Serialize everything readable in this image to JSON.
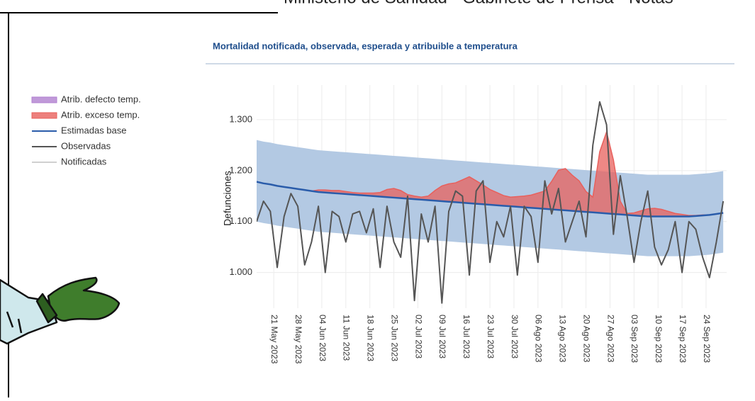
{
  "header": "Ministerio de Sanidad - Gabinete de Prensa - Notas",
  "chart_data": {
    "type": "line",
    "title": "Mortalidad notificada, observada, esperada y atribuible a temperatura",
    "y_label": "Defunciones",
    "xlim": [
      "2023-05-16",
      "2023-09-30"
    ],
    "ylim": [
      930,
      1368
    ],
    "grid": true,
    "legend": "left",
    "yticks": [
      {
        "value": 1000,
        "label": "1.000"
      },
      {
        "value": 1100,
        "label": "1.100"
      },
      {
        "value": 1200,
        "label": "1.200"
      },
      {
        "value": 1300,
        "label": "1.300"
      }
    ],
    "xticks": [
      {
        "value": "2023-05-21",
        "label": "21 May 2023"
      },
      {
        "value": "2023-05-28",
        "label": "28 May 2023"
      },
      {
        "value": "2023-06-04",
        "label": "04 Jun 2023"
      },
      {
        "value": "2023-06-11",
        "label": "11 Jun 2023"
      },
      {
        "value": "2023-06-18",
        "label": "18 Jun 2023"
      },
      {
        "value": "2023-06-25",
        "label": "25 Jun 2023"
      },
      {
        "value": "2023-07-02",
        "label": "02 Jul 2023"
      },
      {
        "value": "2023-07-09",
        "label": "09 Jul 2023"
      },
      {
        "value": "2023-07-16",
        "label": "16 Jul 2023"
      },
      {
        "value": "2023-07-23",
        "label": "23 Jul 2023"
      },
      {
        "value": "2023-07-30",
        "label": "30 Jul 2023"
      },
      {
        "value": "2023-08-06",
        "label": "06 Ago 2023"
      },
      {
        "value": "2023-08-13",
        "label": "13 Ago 2023"
      },
      {
        "value": "2023-08-20",
        "label": "20 Ago 2023"
      },
      {
        "value": "2023-08-27",
        "label": "27 Ago 2023"
      },
      {
        "value": "2023-09-03",
        "label": "03 Sep 2023"
      },
      {
        "value": "2023-09-10",
        "label": "10 Sep 2023"
      },
      {
        "value": "2023-09-17",
        "label": "17 Sep 2023"
      },
      {
        "value": "2023-09-24",
        "label": "24 Sep 2023"
      }
    ],
    "x": [
      "2023-05-16",
      "2023-05-18",
      "2023-05-20",
      "2023-05-22",
      "2023-05-24",
      "2023-05-26",
      "2023-05-28",
      "2023-05-30",
      "2023-06-01",
      "2023-06-03",
      "2023-06-05",
      "2023-06-07",
      "2023-06-09",
      "2023-06-11",
      "2023-06-13",
      "2023-06-15",
      "2023-06-17",
      "2023-06-19",
      "2023-06-21",
      "2023-06-23",
      "2023-06-25",
      "2023-06-27",
      "2023-06-29",
      "2023-07-01",
      "2023-07-03",
      "2023-07-05",
      "2023-07-07",
      "2023-07-09",
      "2023-07-11",
      "2023-07-13",
      "2023-07-15",
      "2023-07-17",
      "2023-07-19",
      "2023-07-21",
      "2023-07-23",
      "2023-07-25",
      "2023-07-27",
      "2023-07-29",
      "2023-07-31",
      "2023-08-02",
      "2023-08-04",
      "2023-08-06",
      "2023-08-08",
      "2023-08-10",
      "2023-08-12",
      "2023-08-14",
      "2023-08-16",
      "2023-08-18",
      "2023-08-20",
      "2023-08-22",
      "2023-08-24",
      "2023-08-26",
      "2023-08-28",
      "2023-08-30",
      "2023-09-01",
      "2023-09-03",
      "2023-09-05",
      "2023-09-07",
      "2023-09-09",
      "2023-09-11",
      "2023-09-13",
      "2023-09-15",
      "2023-09-17",
      "2023-09-19",
      "2023-09-21",
      "2023-09-23",
      "2023-09-25",
      "2023-09-27",
      "2023-09-29"
    ],
    "band": {
      "color": "#b3c9e3",
      "lower": [
        1100,
        1097,
        1095,
        1092,
        1090,
        1088,
        1086,
        1084,
        1082,
        1080,
        1079,
        1078,
        1077,
        1076,
        1075,
        1074,
        1073,
        1072,
        1071,
        1070,
        1069,
        1068,
        1067,
        1066,
        1065,
        1064,
        1063,
        1062,
        1061,
        1060,
        1059,
        1058,
        1057,
        1056,
        1055,
        1054,
        1053,
        1052,
        1051,
        1050,
        1049,
        1048,
        1047,
        1046,
        1045,
        1044,
        1043,
        1042,
        1041,
        1040,
        1039,
        1038,
        1037,
        1036,
        1035,
        1034,
        1033,
        1032,
        1032,
        1032,
        1032,
        1032,
        1032,
        1032,
        1033,
        1034,
        1035,
        1037,
        1039
      ],
      "upper": [
        1260,
        1257,
        1255,
        1252,
        1250,
        1248,
        1246,
        1244,
        1242,
        1240,
        1239,
        1238,
        1237,
        1236,
        1235,
        1234,
        1233,
        1232,
        1231,
        1230,
        1229,
        1228,
        1227,
        1226,
        1225,
        1224,
        1223,
        1222,
        1221,
        1220,
        1219,
        1218,
        1217,
        1216,
        1215,
        1214,
        1213,
        1212,
        1211,
        1210,
        1209,
        1208,
        1207,
        1206,
        1205,
        1204,
        1203,
        1202,
        1201,
        1200,
        1199,
        1198,
        1197,
        1196,
        1195,
        1194,
        1193,
        1192,
        1192,
        1192,
        1192,
        1192,
        1192,
        1192,
        1193,
        1194,
        1195,
        1197,
        1199
      ]
    },
    "series": [
      {
        "name": "Atrib. defecto temp.",
        "color": "#b07fd0",
        "kind": "area",
        "stack_on": 2,
        "values": [
          null,
          null,
          null,
          null,
          null,
          null,
          null,
          null,
          null,
          null,
          null,
          null,
          null,
          null,
          null,
          null,
          null,
          null,
          null,
          null,
          null,
          null,
          null,
          null,
          null,
          null,
          null,
          null,
          null,
          null,
          null,
          null,
          null,
          null,
          null,
          null,
          null,
          null,
          null,
          null,
          null,
          null,
          null,
          null,
          null,
          null,
          null,
          null,
          null,
          null,
          null,
          null,
          null,
          null,
          null,
          null,
          null,
          null,
          null,
          null,
          null,
          null,
          null,
          null,
          null,
          null,
          null,
          null,
          null
        ]
      },
      {
        "name": "Atrib. exceso temp.",
        "color": "#e8605c",
        "kind": "area",
        "stack_on": 2,
        "values": [
          0,
          0,
          0,
          0,
          0,
          0,
          0,
          0,
          0,
          4,
          5,
          5,
          6,
          5,
          4,
          4,
          5,
          6,
          8,
          15,
          18,
          15,
          8,
          6,
          5,
          8,
          20,
          30,
          35,
          38,
          45,
          52,
          45,
          38,
          30,
          25,
          20,
          18,
          20,
          22,
          25,
          30,
          35,
          55,
          78,
          82,
          70,
          60,
          40,
          30,
          120,
          160,
          106,
          26,
          3,
          5,
          10,
          15,
          16,
          14,
          10,
          6,
          4,
          2,
          1,
          1,
          0,
          0,
          0
        ]
      },
      {
        "name": "Estimadas base",
        "color": "#2a5caa",
        "kind": "line",
        "width": 2.5,
        "values": [
          1178,
          1175,
          1173,
          1170,
          1168,
          1166,
          1164,
          1162,
          1160,
          1158,
          1157,
          1156,
          1155,
          1154,
          1153,
          1152,
          1151,
          1150,
          1149,
          1148,
          1147,
          1146,
          1145,
          1144,
          1143,
          1142,
          1141,
          1140,
          1139,
          1138,
          1137,
          1136,
          1135,
          1134,
          1133,
          1132,
          1131,
          1130,
          1129,
          1128,
          1127,
          1126,
          1125,
          1124,
          1123,
          1122,
          1121,
          1120,
          1119,
          1118,
          1117,
          1116,
          1115,
          1114,
          1113,
          1112,
          1111,
          1110,
          1110,
          1110,
          1110,
          1110,
          1110,
          1110,
          1111,
          1112,
          1113,
          1115,
          1117
        ]
      },
      {
        "name": "Observadas",
        "color": "#555555",
        "kind": "line",
        "width": 2,
        "values": [
          1100,
          1140,
          1120,
          1010,
          1110,
          1155,
          1130,
          1015,
          1060,
          1130,
          1000,
          1120,
          1110,
          1060,
          1115,
          1120,
          1078,
          1125,
          1010,
          1130,
          1060,
          1030,
          1150,
          945,
          1115,
          1060,
          1130,
          940,
          1120,
          1160,
          1150,
          995,
          1160,
          1180,
          1020,
          1100,
          1070,
          1130,
          995,
          1130,
          1110,
          1020,
          1180,
          1115,
          1165,
          1060,
          1100,
          1140,
          1070,
          1250,
          1335,
          1290,
          1075,
          1190,
          1110,
          1020,
          1100,
          1160,
          1050,
          1015,
          1045,
          1100,
          1000,
          1100,
          1085,
          1030,
          990,
          1060,
          1140
        ]
      },
      {
        "name": "Notificadas",
        "color": "#d0d0d0",
        "kind": "line",
        "width": 2,
        "values": [
          null,
          null,
          null,
          null,
          null,
          null,
          null,
          null,
          null,
          null,
          null,
          null,
          null,
          null,
          null,
          null,
          null,
          null,
          null,
          null,
          null,
          null,
          null,
          null,
          null,
          null,
          null,
          null,
          null,
          null,
          null,
          null,
          null,
          null,
          null,
          null,
          null,
          null,
          null,
          null,
          null,
          null,
          null,
          null,
          null,
          null,
          null,
          null,
          null,
          null,
          null,
          null,
          null,
          null,
          null,
          null,
          null,
          null,
          null,
          null,
          null,
          null,
          null,
          null,
          null,
          null,
          null,
          null,
          null
        ]
      }
    ]
  }
}
